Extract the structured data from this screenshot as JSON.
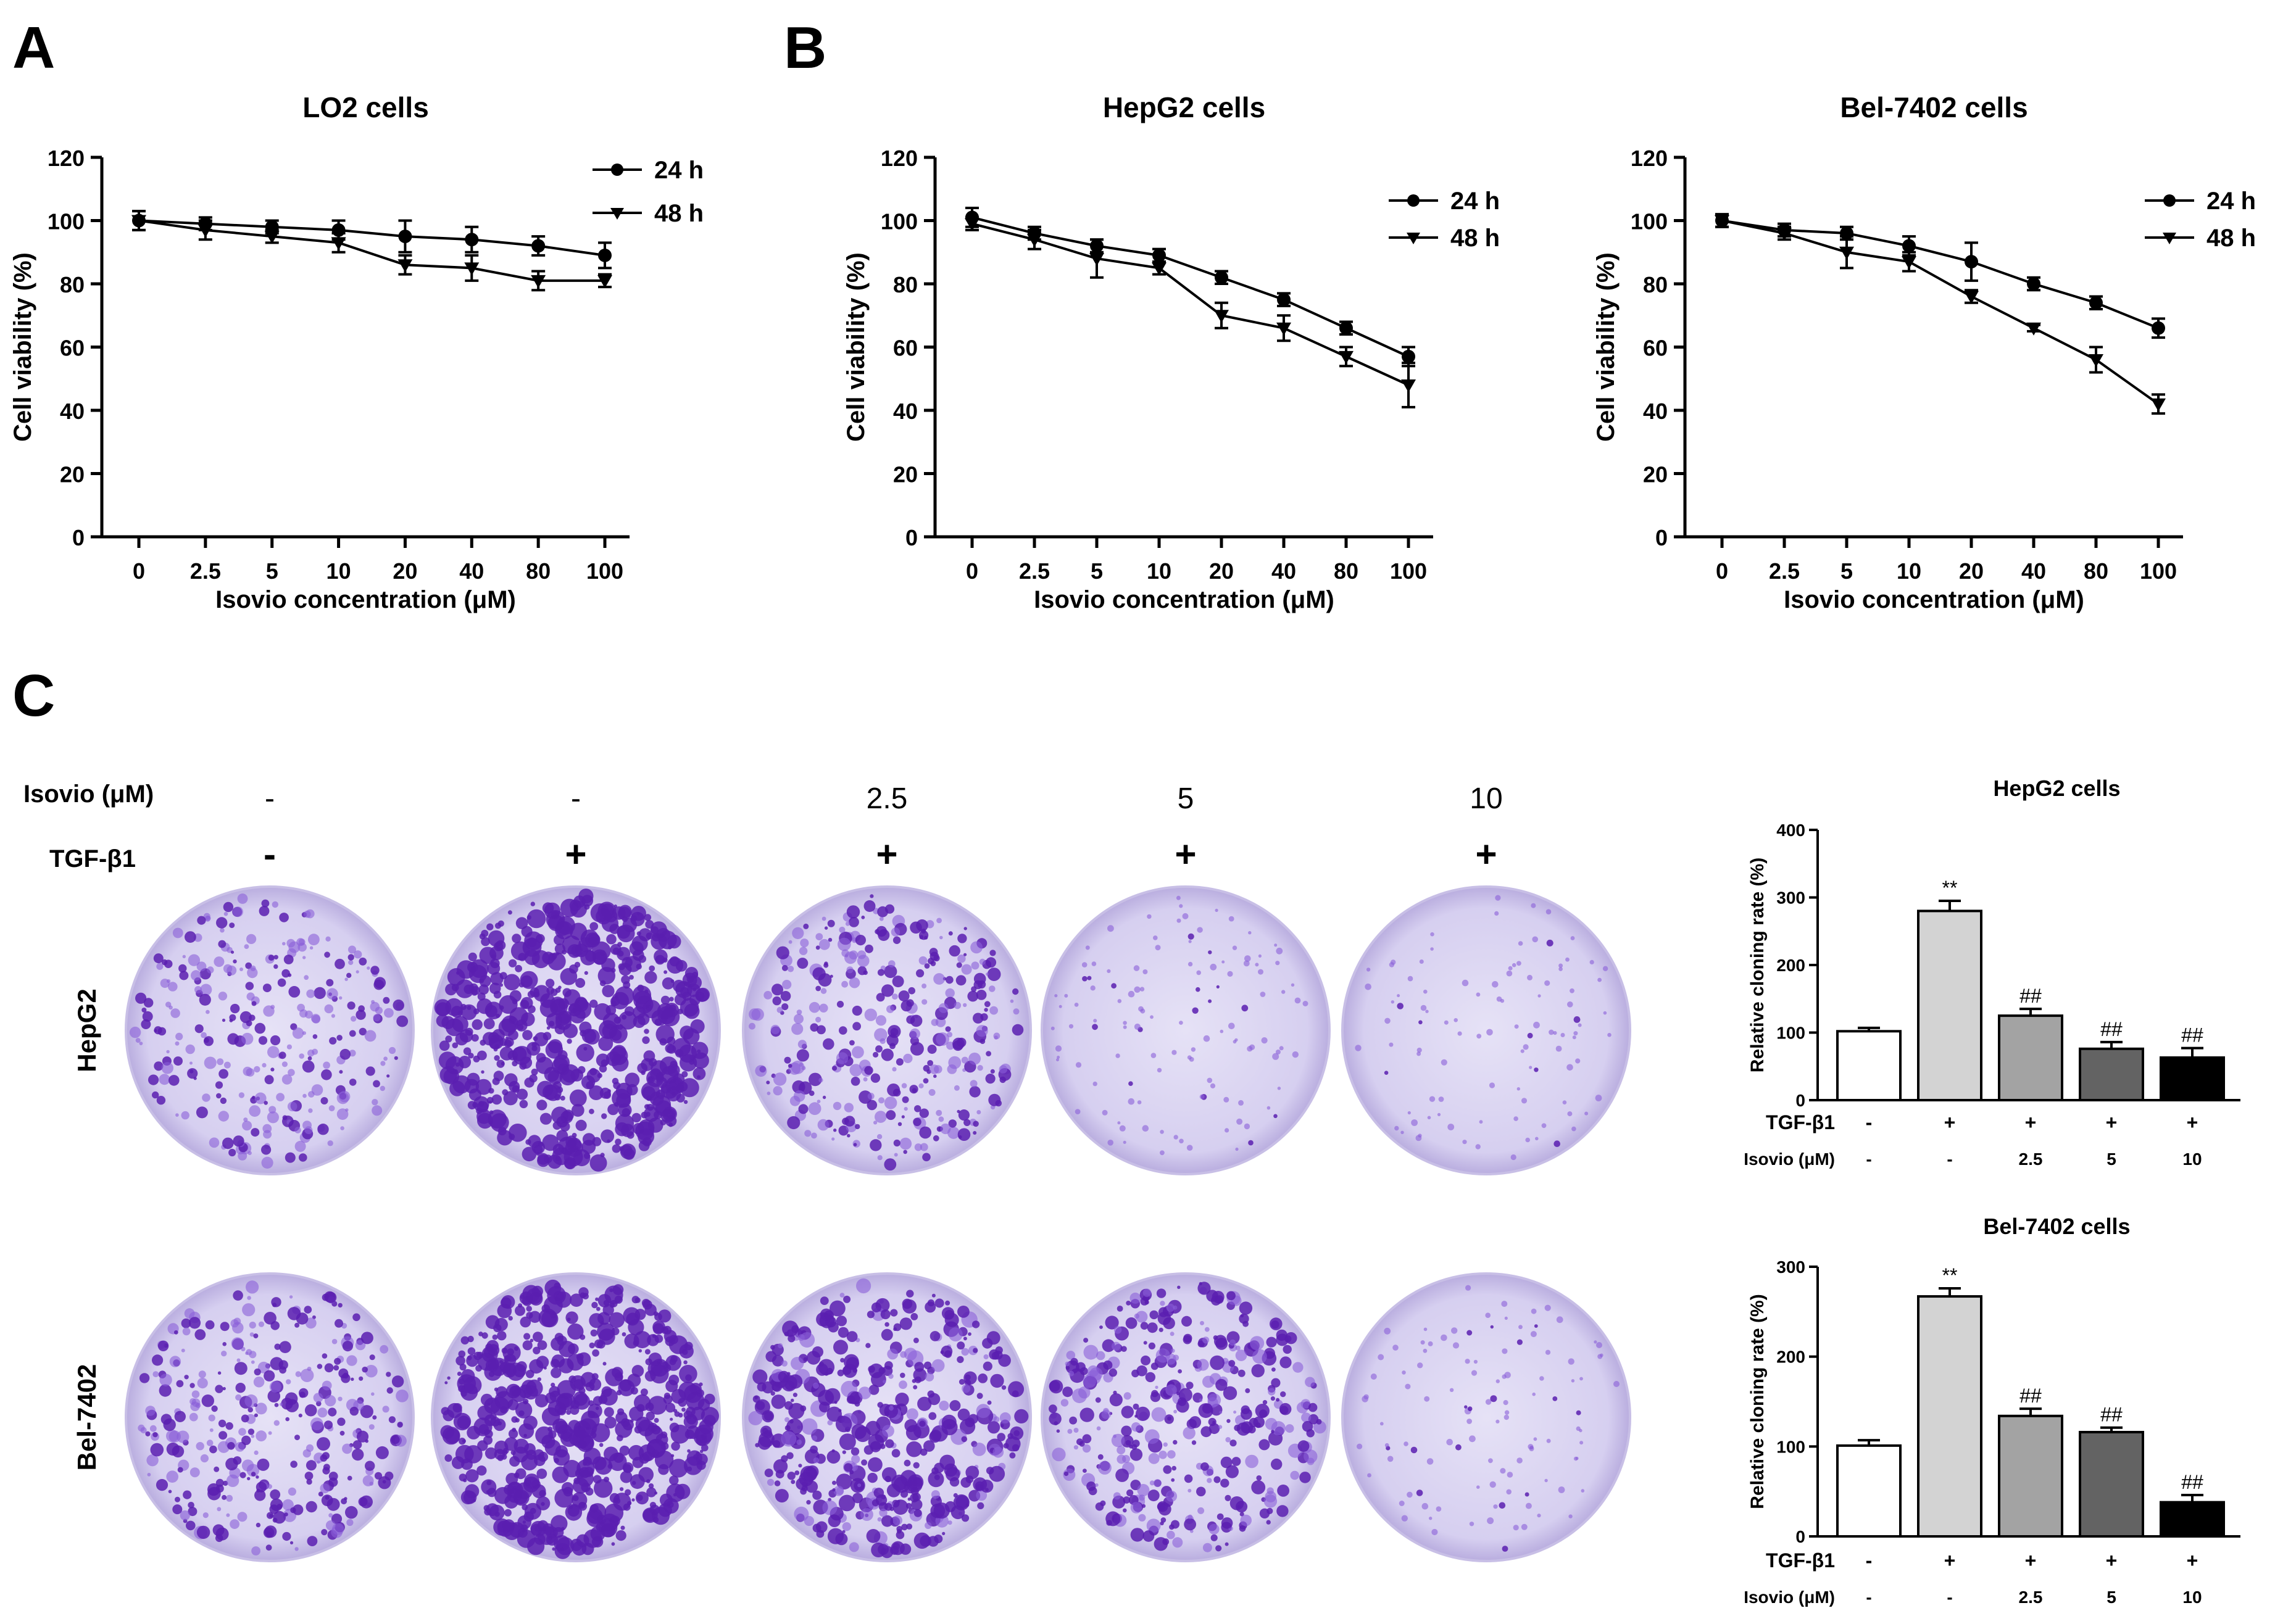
{
  "panels": {
    "A": "A",
    "B": "B",
    "C": "C"
  },
  "colors": {
    "stain_dark": "#5a1fb0",
    "stain_mid": "#8a5fd8",
    "stain_light": "#dcd6f0",
    "bar_fills": [
      "#ffffff",
      "#d3d3d3",
      "#a3a3a3",
      "#636363",
      "#000000"
    ]
  },
  "chart_data": [
    {
      "type": "line",
      "title": "LO2 cells",
      "xlabel": "Isovio concentration (μM)",
      "ylabel": "Cell viability (%)",
      "categories": [
        "0",
        "2.5",
        "5",
        "10",
        "20",
        "40",
        "80",
        "100"
      ],
      "yticks": [
        0,
        20,
        40,
        60,
        80,
        100,
        120
      ],
      "ylim": [
        0,
        120
      ],
      "legend_position": "top-right",
      "series": [
        {
          "name": "24 h",
          "marker": "circle",
          "values": [
            100,
            99,
            98,
            97,
            95,
            94,
            92,
            89
          ],
          "errors": [
            3,
            2,
            2,
            3,
            5,
            4,
            3,
            4
          ]
        },
        {
          "name": "48 h",
          "marker": "triangle-down",
          "values": [
            100,
            97,
            95,
            93,
            86,
            85,
            81,
            81
          ],
          "errors": [
            3,
            3,
            2,
            3,
            3,
            4,
            3,
            2
          ]
        }
      ]
    },
    {
      "type": "line",
      "title": "HepG2 cells",
      "xlabel": "Isovio concentration (μM)",
      "ylabel": "Cell viability (%)",
      "categories": [
        "0",
        "2.5",
        "5",
        "10",
        "20",
        "40",
        "80",
        "100"
      ],
      "yticks": [
        0,
        20,
        40,
        60,
        80,
        100,
        120
      ],
      "ylim": [
        0,
        120
      ],
      "legend_position": "top-right",
      "series": [
        {
          "name": "24 h",
          "marker": "circle",
          "values": [
            101,
            96,
            92,
            89,
            82,
            75,
            66,
            57
          ],
          "errors": [
            3,
            2,
            2,
            2,
            2,
            2,
            2,
            3
          ]
        },
        {
          "name": "48 h",
          "marker": "triangle-down",
          "values": [
            99,
            94,
            88,
            85,
            70,
            66,
            57,
            48
          ],
          "errors": [
            2,
            3,
            6,
            2,
            4,
            4,
            3,
            7
          ]
        }
      ]
    },
    {
      "type": "line",
      "title": "Bel-7402 cells",
      "xlabel": "Isovio concentration (μM)",
      "ylabel": "Cell viability (%)",
      "categories": [
        "0",
        "2.5",
        "5",
        "10",
        "20",
        "40",
        "80",
        "100"
      ],
      "yticks": [
        0,
        20,
        40,
        60,
        80,
        100,
        120
      ],
      "ylim": [
        0,
        120
      ],
      "legend_position": "top-right",
      "series": [
        {
          "name": "24 h",
          "marker": "circle",
          "values": [
            100,
            97,
            96,
            92,
            87,
            80,
            74,
            66
          ],
          "errors": [
            2,
            2,
            2,
            3,
            6,
            2,
            2,
            3
          ]
        },
        {
          "name": "48 h",
          "marker": "triangle-down",
          "values": [
            100,
            96,
            90,
            87,
            76,
            66,
            56,
            42
          ],
          "errors": [
            2,
            2,
            5,
            3,
            2,
            1,
            4,
            3
          ]
        }
      ]
    },
    {
      "type": "bar",
      "title": "HepG2 cells",
      "ylabel": "Relative cloning rate (%)",
      "yticks": [
        0,
        100,
        200,
        300,
        400
      ],
      "ylim": [
        0,
        400
      ],
      "values": [
        102,
        280,
        125,
        76,
        63
      ],
      "errors": [
        5,
        15,
        10,
        10,
        14
      ],
      "annotations": [
        "",
        "**",
        "##",
        "##",
        "##"
      ],
      "row_labels": [
        "TGF-β1",
        "Isovio (μM)"
      ],
      "tgf": [
        "-",
        "+",
        "+",
        "+",
        "+"
      ],
      "isovio": [
        "-",
        "-",
        "2.5",
        "5",
        "10"
      ]
    },
    {
      "type": "bar",
      "title": "Bel-7402 cells",
      "ylabel": "Relative cloning rate (%)",
      "yticks": [
        0,
        100,
        200,
        300
      ],
      "ylim": [
        0,
        300
      ],
      "values": [
        101,
        267,
        134,
        116,
        38
      ],
      "errors": [
        6,
        9,
        8,
        5,
        8
      ],
      "annotations": [
        "",
        "**",
        "##",
        "##",
        "##"
      ],
      "row_labels": [
        "TGF-β1",
        "Isovio (μM)"
      ],
      "tgf": [
        "-",
        "+",
        "+",
        "+",
        "+"
      ],
      "isovio": [
        "-",
        "-",
        "2.5",
        "5",
        "10"
      ]
    }
  ],
  "colony_assay": {
    "isovio_label": "Isovio (μM)",
    "tgf_label": "TGF-β1",
    "isovio_values": [
      "-",
      "-",
      "2.5",
      "5",
      "10"
    ],
    "tgf_values": [
      "-",
      "+",
      "+",
      "+",
      "+"
    ],
    "row_labels": [
      "HepG2",
      "Bel-7402"
    ],
    "colony_density": [
      [
        0.45,
        1.0,
        0.55,
        0.12,
        0.08
      ],
      [
        0.55,
        1.0,
        0.8,
        0.65,
        0.1
      ]
    ]
  }
}
